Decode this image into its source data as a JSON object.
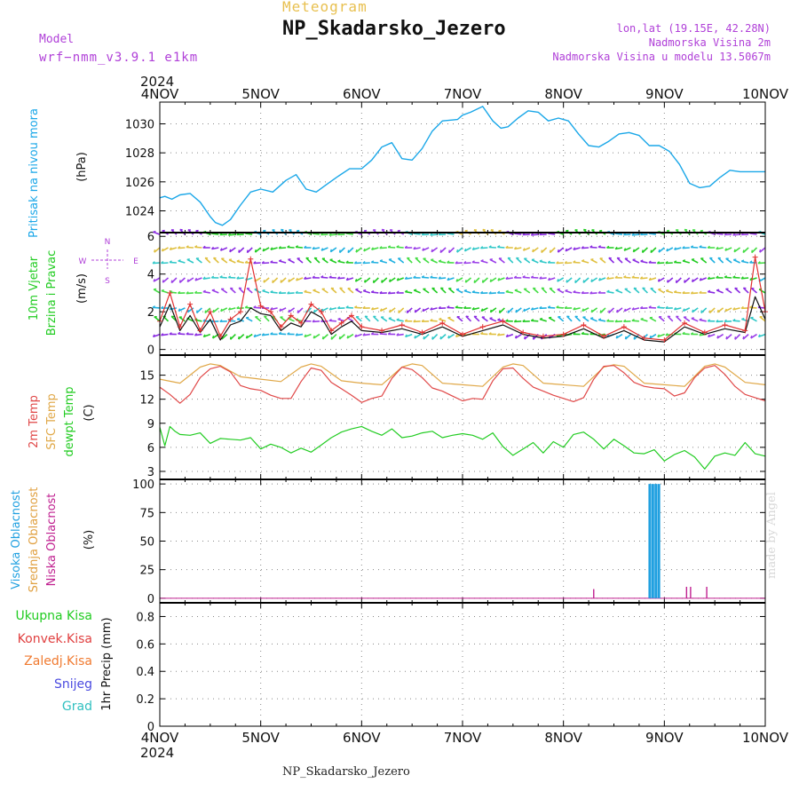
{
  "header": {
    "title": "Meteogram",
    "station": "NP_Skadarsko_Jezero",
    "model_label": "Model",
    "model_value": "wrf−nmm_v3.9.1 e1km",
    "lonlat": "lon,lat (19.15E, 42.28N)",
    "elevation": "Nadmorska Visina 2m",
    "model_elevation": "Nadmorska Visina u modelu 13.5067m"
  },
  "footer": {
    "station": "NP_Skadarsko_Jezero",
    "credit": "made by Angel"
  },
  "time_axis": {
    "year": "2024",
    "labels": [
      "4NOV",
      "5NOV",
      "6NOV",
      "7NOV",
      "8NOV",
      "9NOV",
      "10NOV"
    ]
  },
  "colors": {
    "pressure": "#1aa7e8",
    "wind_speed": "#111111",
    "wind_gust": "#e03030",
    "temp_2m": "#e04848",
    "temp_sfc": "#e0a848",
    "dewpoint": "#22cc22",
    "cloud_high": "#20a0e0",
    "cloud_mid": "#e0a040",
    "cloud_low": "#c02090",
    "precip_total": "#22cc22",
    "precip_conv": "#e04040",
    "precip_frozen": "#f07a30",
    "snow": "#4a4ae0",
    "graupel": "#30c0c0",
    "compass": "#b040d8"
  },
  "chart_data": [
    {
      "type": "line",
      "panel": "pressure",
      "ylabel_parts": [
        "Pritisak na nivou mora",
        "(hPa)"
      ],
      "yticks": [
        1024,
        1026,
        1028,
        1030
      ],
      "ylim": [
        1022.5,
        1031.5
      ],
      "grid": true,
      "series": [
        {
          "name": "Pritisak na nivou mora",
          "x_days": [
            0,
            0.05,
            0.12,
            0.2,
            0.3,
            0.4,
            0.5,
            0.55,
            0.62,
            0.7,
            0.8,
            0.9,
            1.0,
            1.12,
            1.25,
            1.35,
            1.45,
            1.55,
            1.65,
            1.75,
            1.88,
            2.0,
            2.1,
            2.2,
            2.3,
            2.4,
            2.5,
            2.6,
            2.7,
            2.8,
            2.95,
            3.0,
            3.08,
            3.2,
            3.3,
            3.38,
            3.45,
            3.55,
            3.65,
            3.75,
            3.85,
            3.95,
            4.05,
            4.15,
            4.25,
            4.35,
            4.45,
            4.55,
            4.65,
            4.75,
            4.85,
            4.95,
            5.05,
            5.15,
            5.25,
            5.35,
            5.45,
            5.55,
            5.65,
            5.75,
            5.85,
            5.95,
            6.0
          ],
          "values": [
            1024.9,
            1025.0,
            1024.8,
            1025.1,
            1025.2,
            1024.6,
            1023.6,
            1023.2,
            1023.0,
            1023.4,
            1024.4,
            1025.3,
            1025.5,
            1025.3,
            1026.1,
            1026.5,
            1025.5,
            1025.3,
            1025.8,
            1026.3,
            1026.9,
            1026.9,
            1027.5,
            1028.4,
            1028.7,
            1027.6,
            1027.5,
            1028.3,
            1029.5,
            1030.2,
            1030.3,
            1030.6,
            1030.8,
            1031.2,
            1030.2,
            1029.7,
            1029.8,
            1030.4,
            1030.9,
            1030.8,
            1030.2,
            1030.4,
            1030.2,
            1029.3,
            1028.5,
            1028.4,
            1028.8,
            1029.3,
            1029.4,
            1029.2,
            1028.5,
            1028.5,
            1028.1,
            1027.2,
            1025.9,
            1025.6,
            1025.7,
            1026.3,
            1026.8,
            1026.7,
            1026.7,
            1026.7,
            1026.7
          ]
        }
      ]
    },
    {
      "type": "line",
      "panel": "wind",
      "ylabel_parts": [
        "10m Vjetar",
        "Brzina i Pravac",
        "(m/s)"
      ],
      "compass": [
        "N",
        "S",
        "W",
        "E"
      ],
      "yticks": [
        0,
        2,
        4,
        6
      ],
      "ylim": [
        -0.3,
        6.2
      ],
      "grid": true,
      "barb_levels": [
        0.8,
        1.5,
        2.2,
        3.0,
        3.8,
        4.6,
        5.4,
        6.1
      ],
      "series": [
        {
          "name": "speed",
          "x_days": [
            0,
            0.1,
            0.2,
            0.3,
            0.4,
            0.5,
            0.6,
            0.7,
            0.8,
            0.9,
            1.0,
            1.1,
            1.2,
            1.3,
            1.4,
            1.5,
            1.6,
            1.7,
            1.8,
            1.9,
            2.0,
            2.2,
            2.4,
            2.6,
            2.8,
            3.0,
            3.2,
            3.4,
            3.6,
            3.8,
            4.0,
            4.2,
            4.4,
            4.6,
            4.8,
            5.0,
            5.2,
            5.4,
            5.6,
            5.8,
            5.9,
            6.0
          ],
          "values": [
            1.2,
            2.4,
            1.0,
            1.8,
            0.9,
            1.6,
            0.5,
            1.3,
            1.5,
            2.2,
            1.9,
            1.8,
            1.0,
            1.4,
            1.2,
            2.0,
            1.7,
            0.8,
            1.2,
            1.5,
            1.0,
            0.9,
            1.1,
            0.8,
            1.2,
            0.7,
            1.0,
            1.3,
            0.8,
            0.6,
            0.7,
            1.1,
            0.6,
            1.0,
            0.5,
            0.4,
            1.2,
            0.8,
            1.1,
            0.9,
            2.8,
            1.6
          ]
        },
        {
          "name": "gust",
          "x_days": [
            0,
            0.1,
            0.2,
            0.3,
            0.4,
            0.5,
            0.6,
            0.7,
            0.8,
            0.9,
            1.0,
            1.1,
            1.2,
            1.3,
            1.4,
            1.5,
            1.6,
            1.7,
            1.8,
            1.9,
            2.0,
            2.2,
            2.4,
            2.6,
            2.8,
            3.0,
            3.2,
            3.4,
            3.6,
            3.8,
            4.0,
            4.2,
            4.4,
            4.6,
            4.8,
            5.0,
            5.2,
            5.4,
            5.6,
            5.8,
            5.9,
            6.0
          ],
          "values": [
            1.5,
            3.0,
            1.2,
            2.4,
            1.0,
            2.0,
            0.7,
            1.6,
            2.0,
            4.8,
            2.3,
            2.0,
            1.2,
            1.8,
            1.4,
            2.4,
            2.0,
            1.0,
            1.4,
            1.8,
            1.2,
            1.0,
            1.3,
            0.9,
            1.4,
            0.8,
            1.2,
            1.5,
            0.9,
            0.7,
            0.8,
            1.3,
            0.7,
            1.2,
            0.6,
            0.5,
            1.4,
            0.9,
            1.3,
            1.0,
            4.9,
            2.0
          ]
        }
      ]
    },
    {
      "type": "line",
      "panel": "temperature",
      "ylabel_parts": [
        "2m Temp",
        "SFC Temp",
        "dewpt Temp",
        "(C)"
      ],
      "yticks": [
        3,
        6,
        9,
        12,
        15
      ],
      "ylim": [
        2.0,
        17.5
      ],
      "grid": true,
      "series": [
        {
          "name": "2m Temp",
          "x_days": [
            0,
            0.1,
            0.2,
            0.3,
            0.4,
            0.5,
            0.6,
            0.7,
            0.8,
            0.9,
            1.0,
            1.1,
            1.2,
            1.3,
            1.4,
            1.5,
            1.6,
            1.7,
            1.8,
            1.9,
            2.0,
            2.1,
            2.2,
            2.3,
            2.4,
            2.5,
            2.6,
            2.7,
            2.8,
            2.9,
            3.0,
            3.1,
            3.2,
            3.3,
            3.4,
            3.5,
            3.6,
            3.7,
            3.8,
            3.9,
            4.0,
            4.1,
            4.2,
            4.3,
            4.4,
            4.5,
            4.6,
            4.7,
            4.8,
            4.9,
            5.0,
            5.1,
            5.2,
            5.3,
            5.4,
            5.5,
            5.6,
            5.7,
            5.8,
            5.9,
            6.0
          ],
          "values": [
            13.5,
            12.6,
            11.5,
            12.6,
            14.7,
            15.8,
            16.1,
            15.4,
            13.7,
            13.3,
            13.1,
            12.5,
            12.1,
            12.1,
            14.2,
            15.9,
            15.6,
            14.1,
            13.3,
            12.5,
            11.6,
            12.1,
            12.4,
            14.6,
            16.0,
            15.7,
            14.7,
            13.4,
            13.0,
            12.4,
            11.8,
            12.1,
            12.0,
            14.3,
            15.8,
            15.9,
            14.6,
            13.5,
            13.0,
            12.5,
            12.1,
            11.7,
            12.2,
            14.5,
            16.1,
            16.2,
            15.3,
            14.1,
            13.6,
            13.4,
            13.3,
            12.4,
            12.8,
            14.7,
            15.9,
            16.2,
            15.1,
            13.6,
            12.6,
            12.2,
            11.8
          ]
        },
        {
          "name": "SFC Temp",
          "x_days": [
            0,
            0.2,
            0.4,
            0.5,
            0.6,
            0.8,
            1.0,
            1.2,
            1.4,
            1.5,
            1.6,
            1.8,
            2.0,
            2.2,
            2.4,
            2.5,
            2.6,
            2.8,
            3.0,
            3.2,
            3.4,
            3.5,
            3.6,
            3.8,
            4.0,
            4.2,
            4.4,
            4.5,
            4.6,
            4.8,
            5.0,
            5.2,
            5.4,
            5.5,
            5.6,
            5.8,
            6.0
          ],
          "values": [
            14.5,
            14.0,
            16.0,
            16.4,
            16.2,
            14.8,
            14.5,
            14.2,
            16.0,
            16.4,
            16.1,
            14.3,
            14.0,
            13.8,
            16.0,
            16.4,
            16.2,
            14.0,
            13.8,
            13.6,
            16.0,
            16.4,
            16.2,
            14.0,
            13.8,
            13.6,
            16.0,
            16.3,
            16.1,
            14.0,
            13.8,
            13.6,
            16.1,
            16.4,
            16.0,
            14.1,
            13.8
          ]
        },
        {
          "name": "dewpt Temp",
          "x_days": [
            0,
            0.05,
            0.1,
            0.15,
            0.2,
            0.3,
            0.4,
            0.5,
            0.6,
            0.7,
            0.8,
            0.9,
            1.0,
            1.1,
            1.2,
            1.3,
            1.4,
            1.5,
            1.6,
            1.7,
            1.8,
            1.9,
            2.0,
            2.1,
            2.2,
            2.3,
            2.4,
            2.5,
            2.6,
            2.7,
            2.8,
            2.9,
            3.0,
            3.1,
            3.2,
            3.3,
            3.4,
            3.5,
            3.6,
            3.7,
            3.8,
            3.9,
            4.0,
            4.1,
            4.2,
            4.3,
            4.4,
            4.5,
            4.6,
            4.7,
            4.8,
            4.9,
            5.0,
            5.1,
            5.2,
            5.3,
            5.4,
            5.5,
            5.6,
            5.7,
            5.8,
            5.9,
            6.0
          ],
          "values": [
            8.5,
            6.2,
            8.6,
            8.0,
            7.6,
            7.5,
            7.8,
            6.5,
            7.1,
            7.0,
            6.9,
            7.2,
            5.8,
            6.4,
            6.0,
            5.3,
            5.9,
            5.4,
            6.3,
            7.2,
            7.9,
            8.3,
            8.6,
            8.0,
            7.5,
            8.3,
            7.2,
            7.4,
            7.8,
            8.0,
            7.2,
            7.5,
            7.7,
            7.5,
            7.0,
            7.8,
            6.1,
            5.0,
            5.8,
            6.6,
            5.3,
            6.7,
            6.0,
            7.6,
            7.9,
            7.0,
            5.8,
            7.0,
            6.2,
            5.3,
            5.2,
            5.7,
            4.3,
            5.1,
            5.6,
            4.8,
            3.3,
            4.9,
            5.3,
            5.0,
            6.6,
            5.2,
            4.9
          ]
        }
      ]
    },
    {
      "type": "bar",
      "panel": "cloud",
      "ylabel_parts": [
        "Visoka Oblacnost",
        "Srednja Oblacnost",
        "Niska Oblacnost",
        "(%)"
      ],
      "yticks": [
        0,
        25,
        50,
        75,
        100
      ],
      "ylim": [
        -4,
        104
      ],
      "grid": true,
      "series": [
        {
          "name": "Visoka Oblacnost",
          "x_days": [
            4.86,
            4.89,
            4.92,
            4.95
          ],
          "values": [
            100,
            100,
            100,
            100
          ]
        },
        {
          "name": "Niska Oblacnost",
          "x_days": [
            4.3,
            5.22,
            5.26,
            5.42
          ],
          "values": [
            8,
            10,
            10,
            10
          ]
        }
      ]
    },
    {
      "type": "line",
      "panel": "precip",
      "ylabel_parts": [
        "1hr Precip (mm)"
      ],
      "legend": [
        "Ukupna Kisa",
        "Konvek.Kisa",
        "Zaledj.Kisa",
        "Snijeg",
        "Grad"
      ],
      "yticks": [
        0,
        0.2,
        0.4,
        0.6,
        0.8
      ],
      "ylim": [
        0,
        0.9
      ],
      "grid": true,
      "series": [
        {
          "name": "Ukupna Kisa",
          "x_days": [
            0,
            6
          ],
          "values": [
            0,
            0
          ]
        }
      ]
    }
  ]
}
